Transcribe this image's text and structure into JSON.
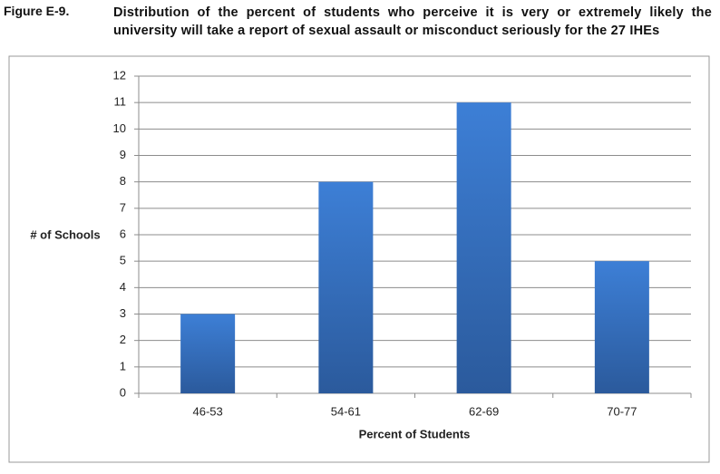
{
  "chart_data": {
    "type": "bar",
    "figure_label": "Figure E-9.",
    "title": "Distribution of the percent of students who perceive it is very or extremely likely the university will take a report of sexual assault or misconduct seriously for the 27 IHEs",
    "x_label": "Percent of Students",
    "y_label": "# of Schools",
    "categories": [
      "46-53",
      "54-61",
      "62-69",
      "70-77"
    ],
    "values": [
      3,
      8,
      11,
      5
    ],
    "color": "#3d7fd6",
    "ylim": [
      0,
      12
    ],
    "yticks": [
      0,
      1,
      2,
      3,
      4,
      5,
      6,
      7,
      8,
      9,
      10,
      11,
      12
    ],
    "grid": true
  }
}
